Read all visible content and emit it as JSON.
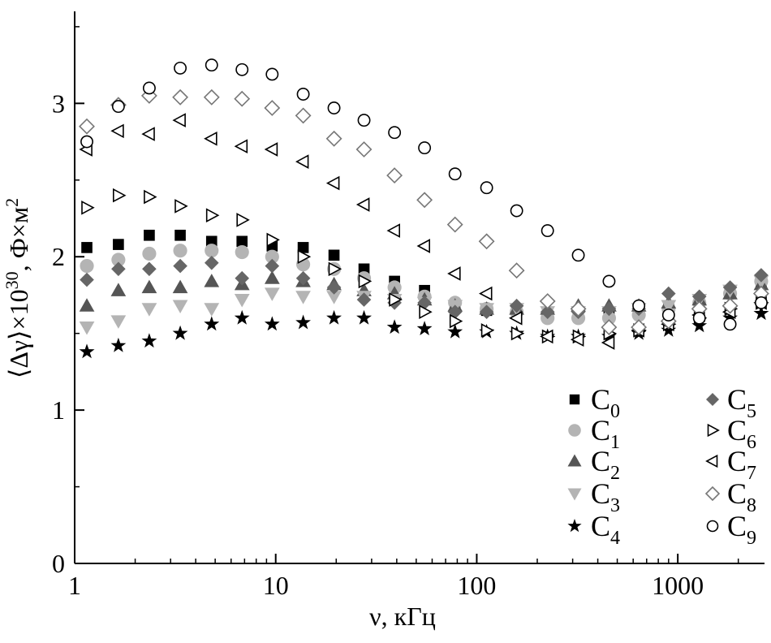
{
  "chart_data": {
    "type": "scatter",
    "xscale": "log",
    "xlim": [
      1,
      2700
    ],
    "ylim": [
      0,
      3.6
    ],
    "grid": false,
    "legend_position": "bottom-right",
    "xlabel": "ν, кГц",
    "ylabel_parts": {
      "main": "⟨Δγ⟩×10",
      "exp": "30",
      "unit": ", Ф×м",
      "unit_exp": "2"
    },
    "x_ticks": [
      {
        "value": 1,
        "label": "1"
      },
      {
        "value": 10,
        "label": "10"
      },
      {
        "value": 100,
        "label": "100"
      },
      {
        "value": 1000,
        "label": "1000"
      }
    ],
    "y_ticks": [
      {
        "value": 0,
        "label": "0"
      },
      {
        "value": 1,
        "label": "1"
      },
      {
        "value": 2,
        "label": "2"
      },
      {
        "value": 3,
        "label": "3"
      }
    ],
    "x": [
      1.15,
      1.65,
      2.35,
      3.35,
      4.8,
      6.8,
      9.6,
      13.7,
      19.5,
      27.5,
      39,
      55,
      78,
      112,
      158,
      225,
      320,
      455,
      640,
      900,
      1280,
      1820,
      2600
    ],
    "series": [
      {
        "name": "C",
        "sub": "0",
        "marker": "square",
        "color": "#000000",
        "filled": true,
        "values": [
          2.06,
          2.08,
          2.14,
          2.14,
          2.1,
          2.1,
          2.07,
          2.06,
          2.01,
          1.92,
          1.84,
          1.78,
          1.68,
          1.65,
          1.66,
          1.62,
          1.62,
          1.62,
          1.64,
          1.66,
          1.7,
          1.76,
          1.84
        ]
      },
      {
        "name": "C",
        "sub": "1",
        "marker": "circle",
        "color": "#b4b4b4",
        "filled": true,
        "values": [
          1.94,
          1.98,
          2.02,
          2.04,
          2.04,
          2.03,
          2.0,
          1.95,
          1.92,
          1.86,
          1.8,
          1.74,
          1.7,
          1.66,
          1.64,
          1.6,
          1.6,
          1.6,
          1.62,
          1.66,
          1.7,
          1.76,
          1.84
        ]
      },
      {
        "name": "C",
        "sub": "2",
        "marker": "triangle-up",
        "color": "#555555",
        "filled": true,
        "values": [
          1.68,
          1.78,
          1.8,
          1.8,
          1.84,
          1.82,
          1.86,
          1.84,
          1.82,
          1.78,
          1.76,
          1.72,
          1.68,
          1.66,
          1.66,
          1.66,
          1.68,
          1.68,
          1.68,
          1.7,
          1.72,
          1.76,
          1.82
        ]
      },
      {
        "name": "C",
        "sub": "3",
        "marker": "triangle-down",
        "color": "#b4b4b4",
        "filled": true,
        "values": [
          1.54,
          1.58,
          1.66,
          1.68,
          1.66,
          1.72,
          1.76,
          1.74,
          1.74,
          1.74,
          1.72,
          1.7,
          1.68,
          1.66,
          1.66,
          1.64,
          1.64,
          1.64,
          1.66,
          1.68,
          1.72,
          1.78,
          1.84
        ]
      },
      {
        "name": "C",
        "sub": "4",
        "marker": "star",
        "color": "#000000",
        "filled": true,
        "values": [
          1.38,
          1.42,
          1.45,
          1.5,
          1.56,
          1.6,
          1.56,
          1.57,
          1.6,
          1.6,
          1.54,
          1.53,
          1.51,
          1.51,
          1.5,
          1.48,
          1.48,
          1.48,
          1.5,
          1.52,
          1.55,
          1.6,
          1.63
        ]
      },
      {
        "name": "C",
        "sub": "5",
        "marker": "diamond",
        "color": "#666666",
        "filled": true,
        "values": [
          1.85,
          1.92,
          1.92,
          1.94,
          1.96,
          1.86,
          1.94,
          1.86,
          1.8,
          1.72,
          1.7,
          1.7,
          1.64,
          1.64,
          1.68,
          1.64,
          1.64,
          1.66,
          1.66,
          1.76,
          1.74,
          1.8,
          1.88
        ]
      },
      {
        "name": "C",
        "sub": "6",
        "marker": "triangle-right",
        "color": "#000000",
        "filled": false,
        "values": [
          2.32,
          2.4,
          2.39,
          2.33,
          2.27,
          2.24,
          2.11,
          2.0,
          1.92,
          1.84,
          1.72,
          1.64,
          1.58,
          1.52,
          1.5,
          1.48,
          1.48,
          1.5,
          1.52,
          1.56,
          1.6,
          1.66,
          1.7
        ]
      },
      {
        "name": "C",
        "sub": "7",
        "marker": "triangle-left",
        "color": "#000000",
        "filled": false,
        "values": [
          2.7,
          2.82,
          2.8,
          2.89,
          2.77,
          2.72,
          2.7,
          2.62,
          2.48,
          2.34,
          2.17,
          2.07,
          1.89,
          1.76,
          1.6,
          1.48,
          1.46,
          1.44,
          1.52,
          1.56,
          1.62,
          1.64,
          1.7
        ]
      },
      {
        "name": "C",
        "sub": "8",
        "marker": "diamond",
        "color": "#777777",
        "filled": false,
        "values": [
          2.85,
          2.99,
          3.05,
          3.04,
          3.04,
          3.03,
          2.97,
          2.92,
          2.77,
          2.7,
          2.53,
          2.37,
          2.21,
          2.1,
          1.91,
          1.71,
          1.66,
          1.54,
          1.54,
          1.58,
          1.66,
          1.68,
          1.76
        ]
      },
      {
        "name": "C",
        "sub": "9",
        "marker": "circle",
        "color": "#000000",
        "filled": false,
        "values": [
          2.75,
          2.98,
          3.1,
          3.23,
          3.25,
          3.22,
          3.19,
          3.06,
          2.97,
          2.89,
          2.81,
          2.71,
          2.54,
          2.45,
          2.3,
          2.17,
          2.01,
          1.84,
          1.68,
          1.62,
          1.6,
          1.56,
          1.7
        ]
      }
    ]
  }
}
